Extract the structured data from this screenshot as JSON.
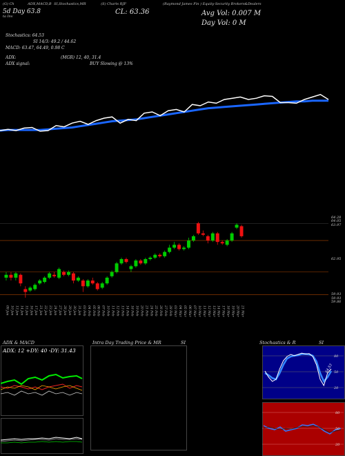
{
  "header": {
    "tl1": "(G) Ch",
    "tl2": "5d Day 63.8",
    "tl3": "ta Inv",
    "charts_label": "ADX,MACD,B",
    "charts_label2": "SI,Stochastics,MR",
    "price_label": "(S) Charts RJF",
    "cl_label": "CL: 63.36",
    "company": "(Raymond James Fin ) Equity-Security Brokers&Dealers",
    "avg_vol": "Avg Vol: 0.007 M",
    "day_vol": "Day Vol: 0   M"
  },
  "indicators": {
    "stochastics": "Stochastics: 64.53",
    "rsi": "SI 14/3: 49.2  /  44.62",
    "macd": "MACD: 63.47, 64.49, 0.98  C",
    "adx": "ADX:",
    "adx_vals": "(MGR) 12, 40, 31.4",
    "adx_signal": "ADX  signal:",
    "buy_signal": "BUY Slowing @ 13%"
  },
  "price_axis": [
    "64.28",
    "64.05",
    "63.97",
    "62.95",
    "59.93",
    "59.93",
    "59.86"
  ],
  "date_labels": [
    "09 Jan",
    "10 Jan",
    "13 Jan",
    "14 Jan",
    "15 Jan",
    "16 Jan",
    "17 Jan",
    "21 Jan",
    "22 Jan",
    "23 Jan",
    "24 Jan",
    "27 Jan",
    "28 Jan",
    "29 Jan",
    "30 Jan",
    "31 Jan",
    "03 Feb",
    "04 Feb",
    "05 Feb",
    "06 Feb",
    "07 Feb",
    "10 Feb",
    "11 Feb",
    "12 Feb",
    "13 Feb",
    "14 Feb",
    "18 Feb",
    "19 Feb",
    "20 Feb",
    "21 Feb",
    "24 Feb",
    "25 Feb",
    "26 Feb",
    "27 Feb",
    "28 Feb",
    "03 Mar",
    "04 Mar",
    "05 Mar",
    "06 Mar",
    "07 Mar",
    "10 Mar",
    "11 Mar",
    "12 Mar",
    "13 Mar",
    "14 Mar",
    "17 Mar",
    "18 Mar",
    "19 Mar",
    "20 Mar",
    "21 Mar"
  ],
  "panels": {
    "adx_title": "ADX  & MACD",
    "adx_values": "ADX: 12  +DY: 40  -DY: 31.43",
    "intraday_title": "Intra  Day Trading Price  & MR",
    "intraday_si": "SI",
    "stoch_title": "Stochastics & R",
    "stoch_si": "SI",
    "stoch_annotation": "64.53",
    "stoch_levels": [
      "80",
      "50",
      "20"
    ],
    "rsi_levels": [
      "80",
      "50",
      "20"
    ]
  },
  "colors": {
    "background": "#000000",
    "up": "#00cc00",
    "down": "#ee1111",
    "ma": "#1a66ff",
    "price_line": "#ffffff",
    "stoch_bg": "#000088",
    "rsi_bg": "#aa0000"
  },
  "chart_data": {
    "type": "candlestick",
    "candles": [
      {
        "date": "09 Jan",
        "o": 62.3,
        "c": 62.4,
        "h": 62.5,
        "l": 62.2
      },
      {
        "date": "10 Jan",
        "o": 62.4,
        "c": 62.3,
        "h": 62.5,
        "l": 62.2
      },
      {
        "date": "13 Jan",
        "o": 62.3,
        "c": 62.45,
        "h": 62.5,
        "l": 62.2
      },
      {
        "date": "14 Jan",
        "o": 62.4,
        "c": 62.1,
        "h": 62.45,
        "l": 62.0
      },
      {
        "date": "15 Jan",
        "o": 61.9,
        "c": 61.8,
        "h": 62.0,
        "l": 61.6
      },
      {
        "date": "16 Jan",
        "o": 61.85,
        "c": 61.95,
        "h": 62.0,
        "l": 61.8
      },
      {
        "date": "17 Jan",
        "o": 61.9,
        "c": 62.05,
        "h": 62.1,
        "l": 61.85
      },
      {
        "date": "21 Jan",
        "o": 62.1,
        "c": 62.2,
        "h": 62.25,
        "l": 62.05
      },
      {
        "date": "22 Jan",
        "o": 62.15,
        "c": 62.3,
        "h": 62.35,
        "l": 62.1
      },
      {
        "date": "23 Jan",
        "o": 62.3,
        "c": 62.45,
        "h": 62.5,
        "l": 62.25
      },
      {
        "date": "24 Jan",
        "o": 62.4,
        "c": 62.35,
        "h": 62.5,
        "l": 62.3
      },
      {
        "date": "27 Jan",
        "o": 62.3,
        "c": 62.6,
        "h": 62.65,
        "l": 62.25
      },
      {
        "date": "28 Jan",
        "o": 62.5,
        "c": 62.4,
        "h": 62.55,
        "l": 62.35
      },
      {
        "date": "29 Jan",
        "o": 62.4,
        "c": 62.5,
        "h": 62.55,
        "l": 62.35
      },
      {
        "date": "30 Jan",
        "o": 62.45,
        "c": 62.2,
        "h": 62.5,
        "l": 62.1
      },
      {
        "date": "31 Jan",
        "o": 62.2,
        "c": 62.3,
        "h": 62.35,
        "l": 62.15
      },
      {
        "date": "03 Feb",
        "o": 62.2,
        "c": 62.0,
        "h": 62.25,
        "l": 61.8
      },
      {
        "date": "04 Feb",
        "o": 62.0,
        "c": 62.2,
        "h": 62.25,
        "l": 61.95
      },
      {
        "date": "05 Feb",
        "o": 62.2,
        "c": 62.1,
        "h": 62.3,
        "l": 62.05
      },
      {
        "date": "06 Feb",
        "o": 62.1,
        "c": 61.9,
        "h": 62.15,
        "l": 61.85
      },
      {
        "date": "07 Feb",
        "o": 61.95,
        "c": 62.1,
        "h": 62.15,
        "l": 61.9
      },
      {
        "date": "10 Feb",
        "o": 62.1,
        "c": 62.3,
        "h": 62.35,
        "l": 62.05
      },
      {
        "date": "11 Feb",
        "o": 62.35,
        "c": 62.5,
        "h": 62.55,
        "l": 62.3
      },
      {
        "date": "12 Feb",
        "o": 62.5,
        "c": 62.8,
        "h": 62.85,
        "l": 62.45
      },
      {
        "date": "13 Feb",
        "o": 62.8,
        "c": 62.95,
        "h": 63.0,
        "l": 62.75
      },
      {
        "date": "14 Feb",
        "o": 62.95,
        "c": 62.85,
        "h": 63.0,
        "l": 62.8
      },
      {
        "date": "18 Feb",
        "o": 62.6,
        "c": 62.7,
        "h": 62.75,
        "l": 62.5
      },
      {
        "date": "19 Feb",
        "o": 62.7,
        "c": 62.9,
        "h": 62.95,
        "l": 62.65
      },
      {
        "date": "20 Feb",
        "o": 62.9,
        "c": 62.8,
        "h": 62.95,
        "l": 62.75
      },
      {
        "date": "21 Feb",
        "o": 62.8,
        "c": 62.95,
        "h": 63.0,
        "l": 62.75
      },
      {
        "date": "24 Feb",
        "o": 62.95,
        "c": 63.0,
        "h": 63.05,
        "l": 62.9
      },
      {
        "date": "25 Feb",
        "o": 63.0,
        "c": 63.1,
        "h": 63.15,
        "l": 62.95
      },
      {
        "date": "26 Feb",
        "o": 63.1,
        "c": 63.05,
        "h": 63.15,
        "l": 63.0
      },
      {
        "date": "27 Feb",
        "o": 63.05,
        "c": 63.2,
        "h": 63.25,
        "l": 63.0
      },
      {
        "date": "28 Feb",
        "o": 63.2,
        "c": 63.35,
        "h": 63.45,
        "l": 63.15
      },
      {
        "date": "03 Mar",
        "o": 63.35,
        "c": 63.45,
        "h": 63.55,
        "l": 63.3
      },
      {
        "date": "04 Mar",
        "o": 63.45,
        "c": 63.3,
        "h": 63.5,
        "l": 63.25
      },
      {
        "date": "05 Mar",
        "o": 63.3,
        "c": 63.35,
        "h": 63.4,
        "l": 63.25
      },
      {
        "date": "06 Mar",
        "o": 63.35,
        "c": 63.6,
        "h": 63.7,
        "l": 63.3
      },
      {
        "date": "07 Mar",
        "o": 63.6,
        "c": 63.75,
        "h": 63.8,
        "l": 63.55
      },
      {
        "date": "10 Mar",
        "o": 64.2,
        "c": 63.85,
        "h": 64.25,
        "l": 63.8
      },
      {
        "date": "11 Mar",
        "o": 63.85,
        "c": 63.8,
        "h": 63.95,
        "l": 63.75
      },
      {
        "date": "12 Mar",
        "o": 63.75,
        "c": 63.6,
        "h": 63.8,
        "l": 63.5
      },
      {
        "date": "13 Mar",
        "o": 63.6,
        "c": 63.85,
        "h": 63.9,
        "l": 63.55
      },
      {
        "date": "14 Mar",
        "o": 63.85,
        "c": 63.55,
        "h": 63.9,
        "l": 63.45
      },
      {
        "date": "17 Mar",
        "o": 63.55,
        "c": 63.5,
        "h": 63.6,
        "l": 63.45
      },
      {
        "date": "18 Mar",
        "o": 63.45,
        "c": 63.6,
        "h": 63.65,
        "l": 63.4
      },
      {
        "date": "19 Mar",
        "o": 63.6,
        "c": 63.85,
        "h": 63.9,
        "l": 63.55
      },
      {
        "date": "20 Mar",
        "o": 64.05,
        "c": 64.15,
        "h": 64.2,
        "l": 64.0
      },
      {
        "date": "21 Mar",
        "o": 64.1,
        "c": 63.75,
        "h": 64.15,
        "l": 63.7
      }
    ],
    "ylim": [
      61.5,
      64.4
    ],
    "price_line_y": [
      0.4,
      0.42,
      0.4,
      0.44,
      0.45,
      0.39,
      0.4,
      0.48,
      0.46,
      0.52,
      0.55,
      0.5,
      0.56,
      0.6,
      0.62,
      0.52,
      0.58,
      0.56,
      0.68,
      0.7,
      0.64,
      0.72,
      0.74,
      0.7,
      0.82,
      0.8,
      0.86,
      0.84,
      0.9,
      0.92,
      0.94,
      0.9,
      0.92,
      0.96,
      0.95,
      0.85,
      0.85,
      0.84,
      0.9,
      0.94,
      0.98,
      0.9
    ],
    "ma_line_y": [
      0.4,
      0.41,
      0.41,
      0.41,
      0.41,
      0.41,
      0.42,
      0.43,
      0.44,
      0.45,
      0.47,
      0.49,
      0.51,
      0.53,
      0.55,
      0.56,
      0.57,
      0.58,
      0.6,
      0.62,
      0.64,
      0.66,
      0.68,
      0.7,
      0.72,
      0.74,
      0.76,
      0.77,
      0.78,
      0.79,
      0.8,
      0.81,
      0.82,
      0.83,
      0.84,
      0.85,
      0.86,
      0.87,
      0.87,
      0.88,
      0.88,
      0.88
    ],
    "stoch_k": [
      0.55,
      0.4,
      0.3,
      0.35,
      0.6,
      0.8,
      0.9,
      0.95,
      0.92,
      0.95,
      0.98,
      0.96,
      0.97,
      0.9,
      0.7,
      0.35,
      0.2,
      0.5,
      0.6
    ],
    "stoch_d": [
      0.5,
      0.45,
      0.38,
      0.35,
      0.5,
      0.7,
      0.85,
      0.9,
      0.92,
      0.93,
      0.96,
      0.96,
      0.95,
      0.92,
      0.78,
      0.5,
      0.3,
      0.4,
      0.55
    ]
  }
}
